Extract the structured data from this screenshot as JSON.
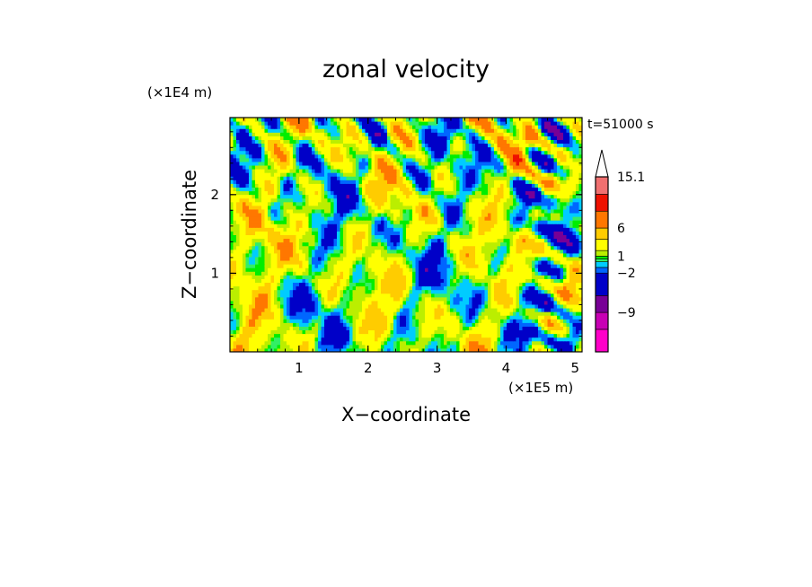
{
  "chart_data": {
    "type": "heatmap",
    "title": "zonal velocity",
    "xlabel": "X−coordinate",
    "ylabel": "Z−coordinate",
    "x_unit": "(×1E5 m)",
    "y_unit": "(×1E4 m)",
    "timestamp": "t=51000 s",
    "xlim": [
      0,
      5.1
    ],
    "ylim": [
      0,
      2.98
    ],
    "x_ticks": [
      1,
      2,
      3,
      4,
      5
    ],
    "x_tick_labels": [
      "1",
      "2",
      "3",
      "4",
      "5"
    ],
    "y_ticks": [
      1,
      2
    ],
    "y_tick_labels": [
      "1",
      "2"
    ],
    "colorbar": {
      "levels": [
        -16,
        -12,
        -9,
        -6,
        -2,
        -1,
        0,
        0.5,
        1,
        2,
        4,
        6,
        9,
        12,
        15.1
      ],
      "colors": [
        "#ff00c8",
        "#c800b4",
        "#780096",
        "#0000c8",
        "#0066ff",
        "#00ccff",
        "#33ee66",
        "#00ee00",
        "#bbee00",
        "#ffff00",
        "#ffcc00",
        "#ff7700",
        "#ee1100",
        "#f07070",
        "#f8b8b8"
      ],
      "tick_values": [
        15.1,
        6,
        1,
        -2,
        -9
      ],
      "tick_labels": [
        "15.1",
        "6",
        "1",
        "−2",
        "−9"
      ],
      "extend": "max"
    }
  }
}
